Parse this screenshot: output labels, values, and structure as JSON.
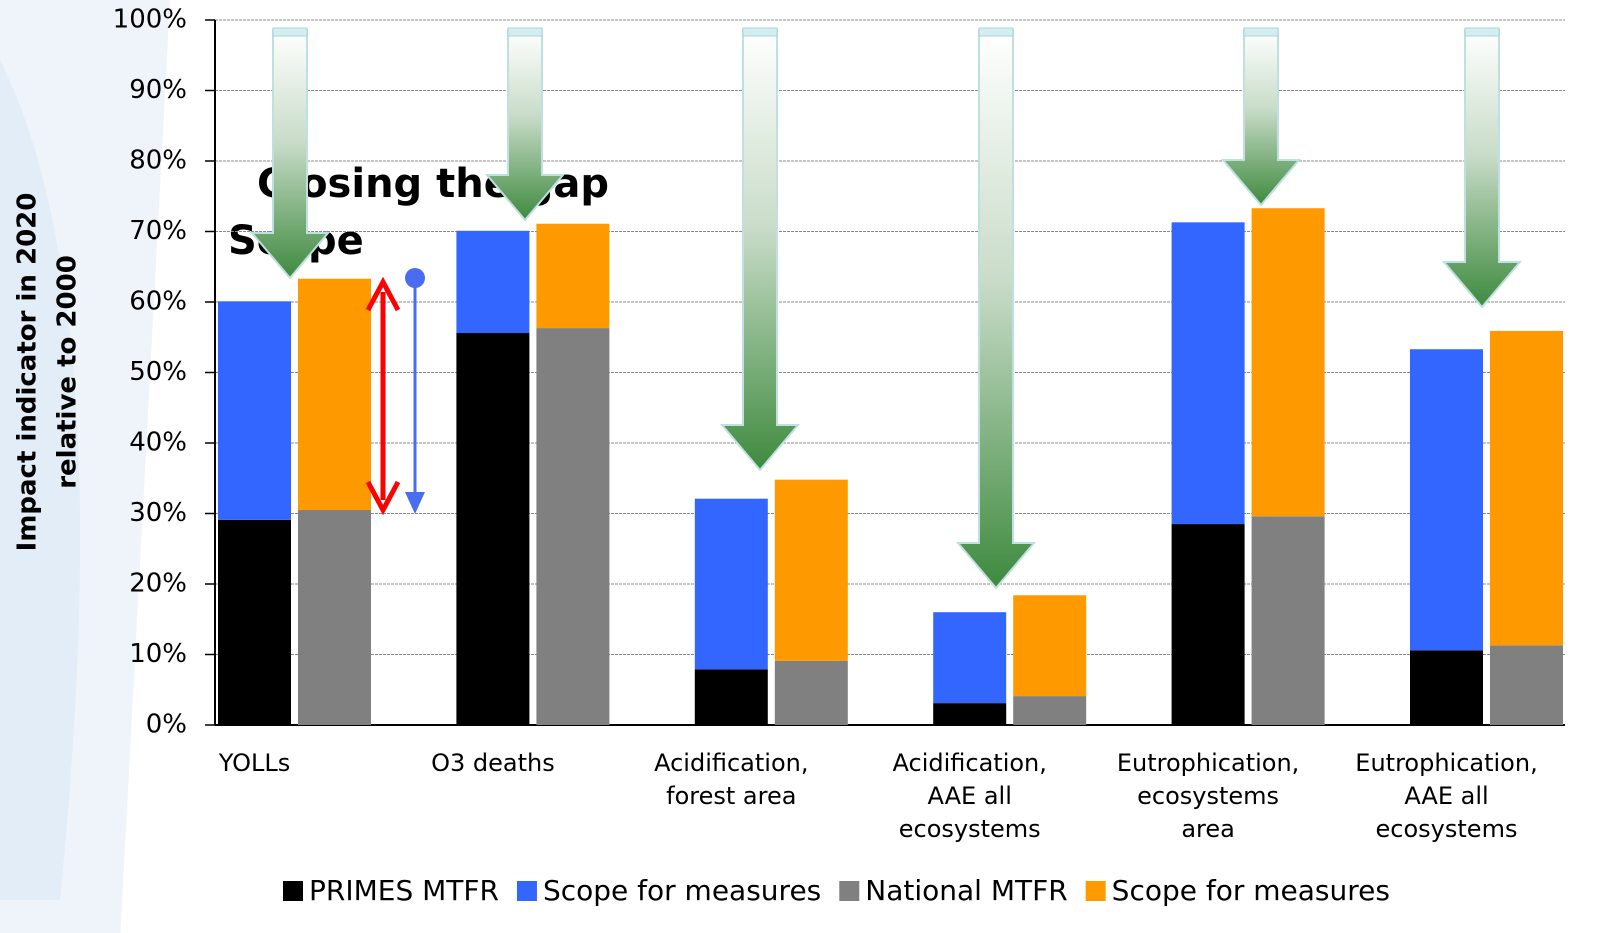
{
  "chart_data": {
    "type": "grouped-stacked-bar",
    "y_label": [
      "Impact indicator in 2020",
      "relative to 2000"
    ],
    "annotations": [
      {
        "text": "Closing the gap",
        "color": "#4a6cf0"
      },
      {
        "text": "Scope",
        "color": "#ff0000"
      }
    ],
    "categories": [
      "YOLLs",
      "O3 deaths",
      "Acidification,\nforest area",
      "Acidification,\nAAE all\necosystems",
      "Eutrophication,\necosystems\narea",
      "Eutrophication,\nAAE all\necosystems"
    ],
    "groups": [
      {
        "series": [
          {
            "name": "PRIMES MTFR",
            "color": "#000000",
            "values": [
              29.1,
              55.6,
              7.9,
              3.1,
              28.5,
              10.6
            ]
          },
          {
            "name": "Scope for measures",
            "color": "#3366ff",
            "values": [
              31.0,
              14.5,
              24.2,
              12.9,
              42.8,
              42.7
            ]
          }
        ]
      },
      {
        "series": [
          {
            "name": "National MTFR",
            "color": "#808080",
            "values": [
              30.5,
              56.3,
              9.1,
              4.1,
              29.6,
              11.3
            ]
          },
          {
            "name": "Scope for measures",
            "color": "#ff9900",
            "values": [
              32.8,
              14.8,
              25.7,
              14.3,
              43.7,
              44.6
            ]
          }
        ]
      }
    ],
    "ylim": [
      0,
      100
    ],
    "yticks": [
      {
        "value": 0,
        "label": "0%"
      },
      {
        "value": 10,
        "label": "10%"
      },
      {
        "value": 20,
        "label": "20%"
      },
      {
        "value": 30,
        "label": "30%"
      },
      {
        "value": 40,
        "label": "40%"
      },
      {
        "value": 50,
        "label": "50%"
      },
      {
        "value": 60,
        "label": "60%"
      },
      {
        "value": 70,
        "label": "70%"
      },
      {
        "value": 80,
        "label": "80%"
      },
      {
        "value": 90,
        "label": "90%"
      },
      {
        "value": 100,
        "label": "100%"
      }
    ],
    "grid": true
  }
}
